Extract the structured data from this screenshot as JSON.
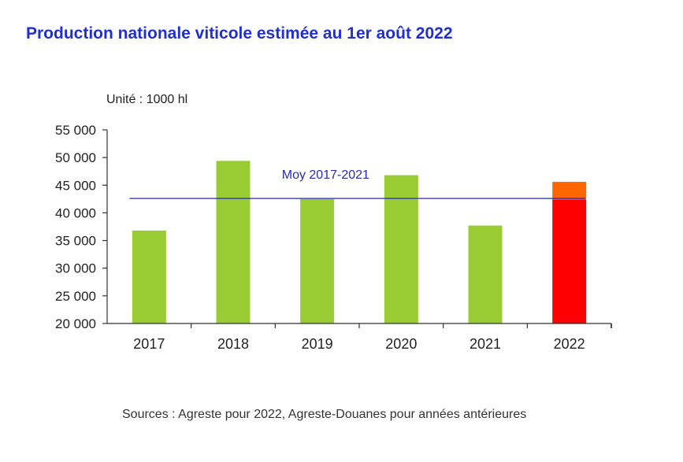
{
  "title": "Production nationale viticole estimée au 1er août 2022",
  "unit_label": "Unité : 1000 hl",
  "source_note": "Sources : Agreste pour 2022, Agreste-Douanes pour années antérieures",
  "colors": {
    "title": "#1f2fd0",
    "bar": "#99cc33",
    "bar_2022_base": "#ff0000",
    "bar_2022_top": "#ff6600",
    "average_line": "#2a2ab8"
  },
  "chart_data": {
    "type": "bar",
    "title": "Production nationale viticole estimée au 1er août 2022",
    "ylabel": "Unité : 1000 hl",
    "xlabel": "",
    "categories": [
      "2017",
      "2018",
      "2019",
      "2020",
      "2021",
      "2022"
    ],
    "values": [
      36800,
      49400,
      42500,
      46800,
      37700,
      45600
    ],
    "segments_2022": [
      {
        "from": 20000,
        "to": 42400,
        "color": "red"
      },
      {
        "from": 42400,
        "to": 45600,
        "color": "orange"
      }
    ],
    "ylim": [
      20000,
      55000
    ],
    "yticks": [
      20000,
      25000,
      30000,
      35000,
      40000,
      45000,
      50000,
      55000
    ],
    "ytick_labels": [
      "20 000",
      "25 000",
      "30 000",
      "35 000",
      "40 000",
      "45 000",
      "50 000",
      "55 000"
    ],
    "average": {
      "label": "Moy 2017-2021",
      "value": 42600
    },
    "grid": false
  }
}
